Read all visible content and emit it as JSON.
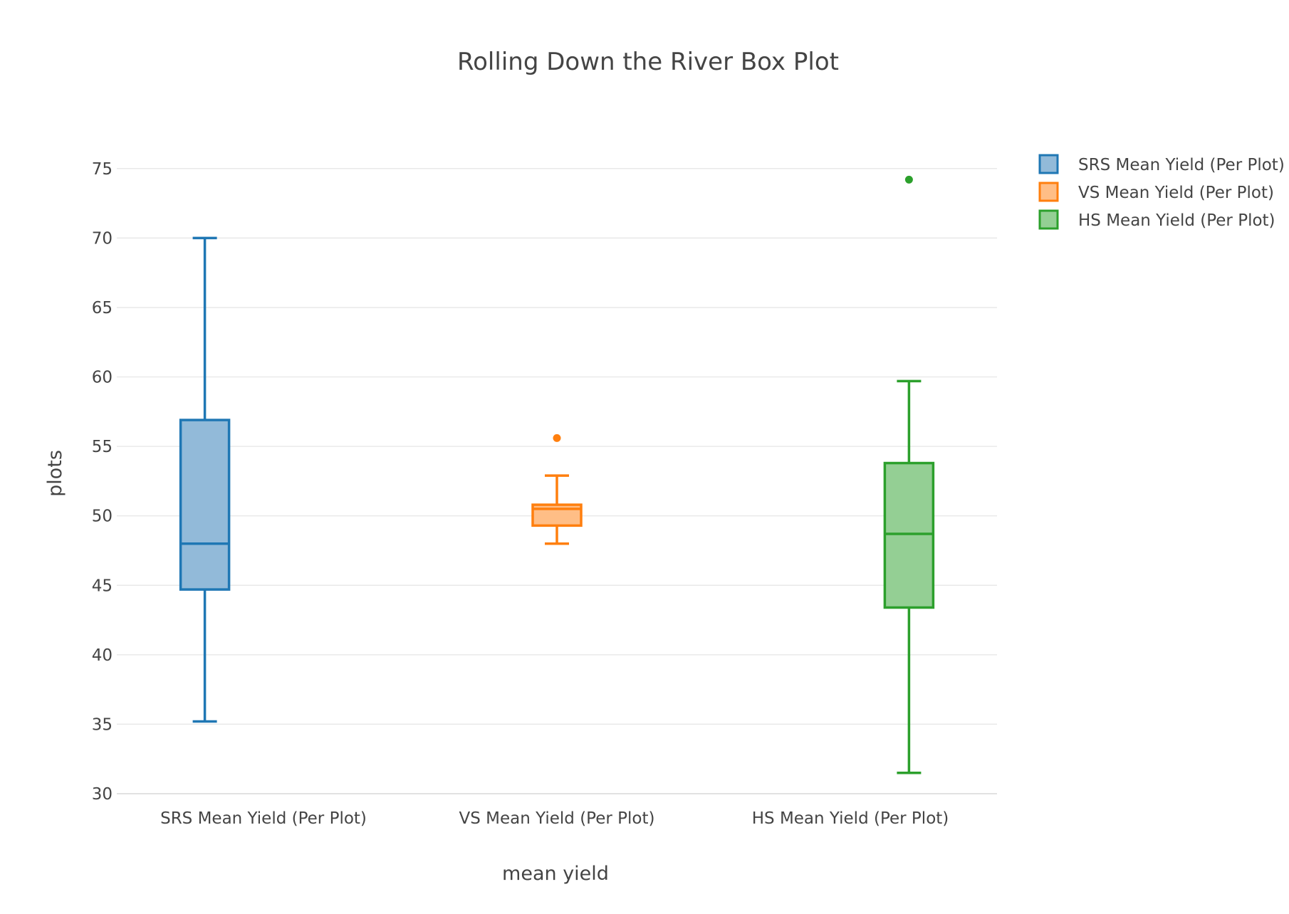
{
  "chart_data": {
    "type": "box",
    "title": "Rolling Down the River Box Plot",
    "xlabel": "mean yield",
    "ylabel": "plots",
    "ylim": [
      30,
      77.5
    ],
    "yticks": [
      30,
      35,
      40,
      45,
      50,
      55,
      60,
      65,
      70,
      75
    ],
    "grid": true,
    "legend_position": "top-right",
    "categories": [
      "SRS Mean Yield (Per Plot)",
      "VS Mean Yield (Per Plot)",
      "HS Mean Yield (Per Plot)"
    ],
    "series": [
      {
        "name": "SRS Mean Yield (Per Plot)",
        "color": "#1f77b4",
        "fill": "#92bad9",
        "min": 35.2,
        "q1": 44.7,
        "median": 48.0,
        "q3": 56.9,
        "max": 70.0,
        "outliers": []
      },
      {
        "name": "VS Mean Yield (Per Plot)",
        "color": "#ff7f0e",
        "fill": "#ffbe86",
        "min": 48.0,
        "q1": 49.3,
        "median": 50.5,
        "q3": 50.8,
        "max": 52.9,
        "outliers": [
          55.6
        ]
      },
      {
        "name": "HS Mean Yield (Per Plot)",
        "color": "#2ca02c",
        "fill": "#94cf94",
        "min": 31.5,
        "q1": 43.4,
        "median": 48.7,
        "q3": 53.8,
        "max": 59.7,
        "outliers": [
          74.2
        ]
      }
    ]
  }
}
